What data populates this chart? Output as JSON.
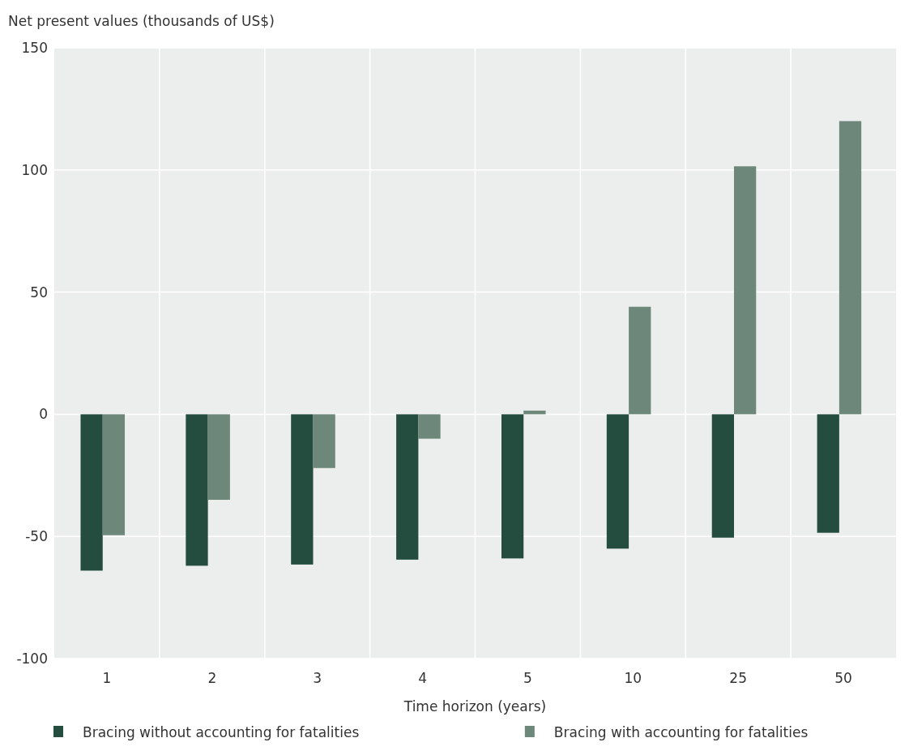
{
  "chart_data": {
    "type": "bar",
    "ylabel": "Net present values (thousands of US$)",
    "xlabel": "Time horizon (years)",
    "categories": [
      "1",
      "2",
      "3",
      "4",
      "5",
      "10",
      "25",
      "50"
    ],
    "series": [
      {
        "name": "Bracing without accounting for fatalities",
        "color": "#244d40",
        "values": [
          -64,
          -62,
          -61.5,
          -59.5,
          -59,
          -55,
          -50.5,
          -48.5
        ]
      },
      {
        "name": "Bracing with accounting for fatalities",
        "color": "#6d877b",
        "values": [
          -49.5,
          -35,
          -22,
          -10,
          1.5,
          44,
          101.5,
          120
        ]
      }
    ],
    "ylim": [
      -100,
      150
    ],
    "yticks": [
      -100,
      -50,
      0,
      50,
      100,
      150
    ],
    "grid": true,
    "legend": "bottom"
  }
}
